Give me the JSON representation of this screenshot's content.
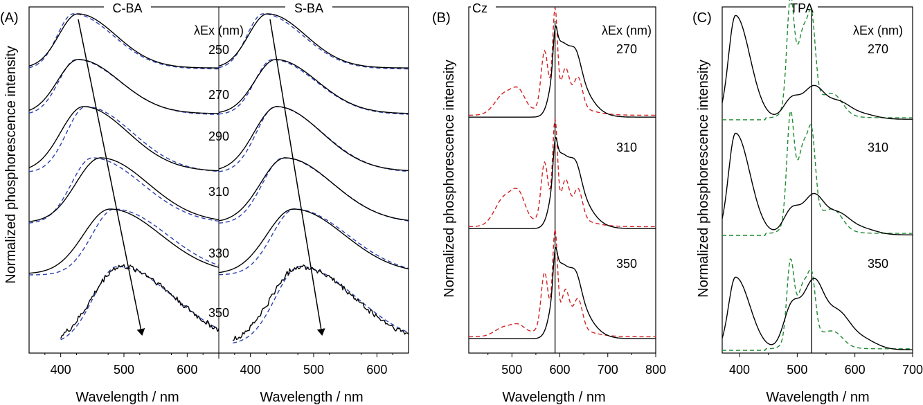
{
  "figure": {
    "panels": [
      {
        "label": "(A)"
      },
      {
        "label": "(B)"
      },
      {
        "label": "(C)"
      }
    ]
  },
  "colors": {
    "blue_dash": "#2b3fb0",
    "red_dash": "#d42020",
    "green_dash": "#1e8a30",
    "solid": "#000000"
  },
  "chart_data": [
    {
      "type": "line",
      "panel": "(A)",
      "sub_labels": [
        "C-BA",
        "S-BA"
      ],
      "ylabel": "Normalized phosphorescence intensity",
      "xlabel": "Wavelength / nm",
      "xlim_left": [
        350,
        650
      ],
      "xlim_right": [
        350,
        650
      ],
      "xticks": [
        400,
        500,
        600
      ],
      "legend_title": "λEx (nm)",
      "excitation_labels": [
        "250",
        "270",
        "290",
        "310",
        "330",
        "350"
      ],
      "series_peaks": {
        "C-BA": [
          {
            "ex": 250,
            "solid_peak": 427,
            "dashed_peak": 420
          },
          {
            "ex": 270,
            "solid_peak": 428,
            "dashed_peak": 425
          },
          {
            "ex": 290,
            "solid_peak": 436,
            "dashed_peak": 440
          },
          {
            "ex": 310,
            "solid_peak": 463,
            "dashed_peak": 450
          },
          {
            "ex": 330,
            "solid_peak": 478,
            "dashed_peak": 485
          },
          {
            "ex": 350,
            "solid_peak": 495,
            "dashed_peak": 490
          }
        ],
        "S-BA": [
          {
            "ex": 250,
            "solid_peak": 427,
            "dashed_peak": 420
          },
          {
            "ex": 270,
            "solid_peak": 440,
            "dashed_peak": 435
          },
          {
            "ex": 290,
            "solid_peak": 442,
            "dashed_peak": 440
          },
          {
            "ex": 310,
            "solid_peak": 455,
            "dashed_peak": 452
          },
          {
            "ex": 330,
            "solid_peak": 468,
            "dashed_peak": 470
          },
          {
            "ex": 350,
            "solid_peak": 478,
            "dashed_peak": 478
          }
        ]
      },
      "grid": false
    },
    {
      "type": "line",
      "panel": "(B)",
      "sub_labels": [
        "Cz"
      ],
      "ylabel": "Normalized phosphorescence intensity",
      "xlabel": "Wavelength / nm",
      "xlim": [
        410,
        800
      ],
      "xticks": [
        500,
        600,
        700,
        800
      ],
      "legend_title": "λEx (nm)",
      "excitation_labels": [
        "270",
        "310",
        "350"
      ],
      "reference_line_x": 590,
      "grid": false
    },
    {
      "type": "line",
      "panel": "(C)",
      "sub_labels": [
        "TPA"
      ],
      "ylabel": "Normalized phosphorescence intensity",
      "xlabel": "Wavelength / nm",
      "xlim": [
        370,
        700
      ],
      "xticks": [
        400,
        500,
        600,
        700
      ],
      "legend_title": "λEx (nm)",
      "excitation_labels": [
        "270",
        "310",
        "350"
      ],
      "reference_line_x": 525,
      "grid": false
    }
  ]
}
